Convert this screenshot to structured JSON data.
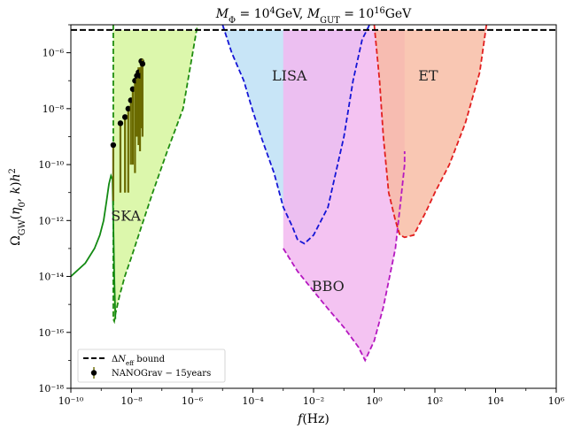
{
  "chart_data": {
    "type": "line",
    "title": "M_Φ = 10⁴GeV,    M_GUT = 10¹⁶GeV",
    "xlabel": "f(Hz)",
    "ylabel": "Ω_GW(η₀, k)h²",
    "x_scale": "log",
    "y_scale": "log",
    "xlim": [
      1e-10,
      1000000.0
    ],
    "ylim": [
      1e-18,
      1e-05
    ],
    "x_ticks": [
      "10⁻¹⁰",
      "10⁻⁸",
      "10⁻⁶",
      "10⁻⁴",
      "10⁻²",
      "10⁰",
      "10²",
      "10⁴",
      "10⁶"
    ],
    "y_ticks": [
      "10⁻¹⁸",
      "10⁻¹⁶",
      "10⁻¹⁴",
      "10⁻¹²",
      "10⁻¹⁰",
      "10⁻⁸",
      "10⁻⁶"
    ],
    "delta_neff_bound": 6.5e-06,
    "legend": {
      "position": "lower-left",
      "entries": [
        "ΔN_eff   bound",
        "NANOGrav − 15years"
      ]
    },
    "regions": [
      {
        "name": "SKA",
        "fill": "#d4f59a",
        "edge": "#1f8c10",
        "x_edge": [
          2.5e-09,
          2.5e-09,
          2.7e-09,
          3e-09,
          4e-09,
          6e-09,
          1e-08,
          2e-08,
          5e-08,
          1.5e-07,
          5e-07,
          1.5e-06
        ],
        "y_edge": [
          1e-05,
          3e-16,
          2.5e-16,
          5e-16,
          2e-15,
          1e-14,
          5e-14,
          5e-13,
          1e-11,
          3e-10,
          1e-08,
          1e-05
        ]
      },
      {
        "name": "LISA",
        "fill": "#bcdff5",
        "edge": "#1515d6",
        "x_edge": [
          1e-05,
          2e-05,
          5e-05,
          0.0001,
          0.0002,
          0.0005,
          0.001,
          0.002,
          0.003,
          0.005,
          0.01,
          0.03,
          0.1,
          0.2,
          0.4,
          0.7
        ],
        "y_edge": [
          1e-05,
          1e-06,
          1e-07,
          8e-09,
          8e-10,
          5e-11,
          3e-12,
          6e-13,
          2e-13,
          1.5e-13,
          3e-13,
          3e-12,
          1e-09,
          1e-07,
          3e-06,
          1e-05
        ]
      },
      {
        "name": "BBO",
        "fill": "#f2b8f0",
        "edge": "#b518c0",
        "x_edge": [
          0.001,
          0.003,
          0.01,
          0.03,
          0.1,
          0.3,
          0.5,
          1,
          2,
          5,
          8,
          10,
          10
        ],
        "y_edge": [
          1e-13,
          1.5e-14,
          3e-15,
          7e-16,
          1.5e-16,
          3e-17,
          1e-17,
          5e-17,
          8e-16,
          1e-13,
          1e-11,
          1e-10,
          3e-10
        ]
      },
      {
        "name": "ET",
        "fill": "#f8bba2",
        "edge": "#e21f1f",
        "x_edge": [
          1,
          1.5,
          2,
          3,
          5,
          7,
          10,
          20,
          50,
          100,
          300,
          1000,
          3000,
          5000
        ],
        "y_edge": [
          1e-05,
          1e-07,
          1e-09,
          1e-11,
          1e-12,
          3e-13,
          2.5e-13,
          3e-13,
          2e-12,
          1e-11,
          1e-10,
          3e-09,
          2e-07,
          1e-05
        ]
      }
    ],
    "gw_spectrum": {
      "color": "#138a13",
      "x": [
        1e-10,
        3e-10,
        6e-10,
        9e-10,
        1.2e-09,
        1.5e-09,
        1.8e-09,
        2.1e-09,
        2.35e-09,
        2.5e-09,
        2.7e-09,
        2.95e-09
      ],
      "y": [
        1e-14,
        3e-14,
        1e-13,
        3e-13,
        1e-12,
        5e-12,
        2e-11,
        4e-11,
        3e-11,
        1e-12,
        1e-14,
        3e-16
      ]
    },
    "nanograv": {
      "color": "#6b6b00",
      "x": [
        2.5e-09,
        4.3e-09,
        6.1e-09,
        7.8e-09,
        9.5e-09,
        1.1e-08,
        1.3e-08,
        1.5e-08,
        1.7e-08,
        1.9e-08,
        2.1e-08,
        2.3e-08
      ],
      "y": [
        5e-10,
        3e-09,
        5e-09,
        1e-08,
        2e-08,
        5e-08,
        1e-07,
        1.5e-07,
        2e-07,
        1.5e-07,
        5e-07,
        4e-07
      ],
      "y_lo": [
        5e-12,
        1e-11,
        1e-11,
        1e-11,
        1e-10,
        1e-10,
        5e-11,
        1e-09,
        5e-10,
        3e-10,
        2e-09,
        1e-09
      ],
      "y_hi": [
        5e-10,
        3e-09,
        5e-09,
        1e-08,
        2e-08,
        5e-08,
        1e-07,
        1.5e-07,
        3e-07,
        3e-07,
        5e-07,
        6e-07
      ]
    }
  }
}
